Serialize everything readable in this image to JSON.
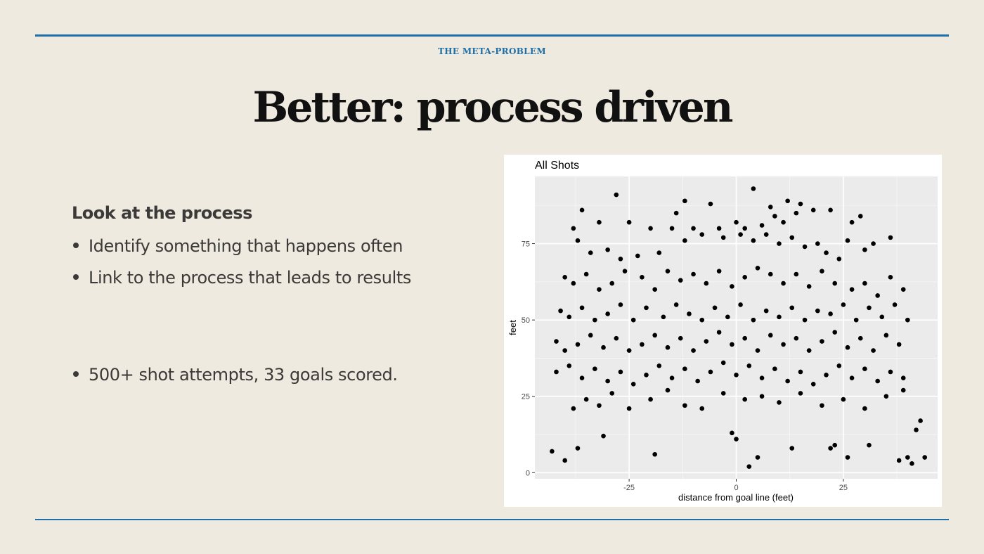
{
  "slide": {
    "eyebrow": "THE META-PROBLEM",
    "title": "Better: process driven",
    "lead": "Look at the process",
    "bullets": [
      "Identify something that happens often",
      "Link to the process that leads to results",
      "500+ shot attempts, 33 goals scored."
    ]
  },
  "colors": {
    "rule": "#1f6fa6",
    "background": "#efeadf",
    "panel": "#ebebeb",
    "point": "#000000"
  },
  "chart_data": {
    "type": "scatter",
    "title": "All Shots",
    "xlabel": "distance from goal line (feet)",
    "ylabel": "feet",
    "xlim": [
      -47,
      47
    ],
    "ylim": [
      -2,
      97
    ],
    "xticks": [
      -25,
      0,
      25
    ],
    "yticks": [
      0,
      25,
      50,
      75
    ],
    "xtick_labels": [
      "-25",
      "0",
      "25"
    ],
    "ytick_labels": [
      "0",
      "25",
      "50",
      "75"
    ],
    "grid": true,
    "points": [
      [
        -28,
        91
      ],
      [
        4,
        93
      ],
      [
        8,
        87
      ],
      [
        12,
        89
      ],
      [
        15,
        88
      ],
      [
        -12,
        89
      ],
      [
        -6,
        88
      ],
      [
        -36,
        86
      ],
      [
        -25,
        82
      ],
      [
        -32,
        82
      ],
      [
        -14,
        85
      ],
      [
        -20,
        80
      ],
      [
        -15,
        80
      ],
      [
        -10,
        80
      ],
      [
        -4,
        80
      ],
      [
        0,
        82
      ],
      [
        2,
        80
      ],
      [
        6,
        81
      ],
      [
        9,
        84
      ],
      [
        11,
        82
      ],
      [
        14,
        85
      ],
      [
        18,
        86
      ],
      [
        22,
        86
      ],
      [
        27,
        82
      ],
      [
        29,
        84
      ],
      [
        -38,
        80
      ],
      [
        -37,
        76
      ],
      [
        -34,
        72
      ],
      [
        -30,
        73
      ],
      [
        -27,
        70
      ],
      [
        -23,
        71
      ],
      [
        -18,
        72
      ],
      [
        -12,
        76
      ],
      [
        -8,
        78
      ],
      [
        -3,
        77
      ],
      [
        1,
        78
      ],
      [
        4,
        76
      ],
      [
        7,
        78
      ],
      [
        10,
        75
      ],
      [
        13,
        77
      ],
      [
        16,
        74
      ],
      [
        19,
        75
      ],
      [
        21,
        72
      ],
      [
        24,
        70
      ],
      [
        26,
        76
      ],
      [
        30,
        73
      ],
      [
        32,
        75
      ],
      [
        36,
        77
      ],
      [
        -40,
        64
      ],
      [
        -38,
        62
      ],
      [
        -35,
        65
      ],
      [
        -32,
        60
      ],
      [
        -29,
        62
      ],
      [
        -26,
        66
      ],
      [
        -22,
        64
      ],
      [
        -19,
        60
      ],
      [
        -16,
        66
      ],
      [
        -13,
        63
      ],
      [
        -10,
        65
      ],
      [
        -7,
        62
      ],
      [
        -4,
        66
      ],
      [
        -1,
        61
      ],
      [
        2,
        64
      ],
      [
        5,
        67
      ],
      [
        8,
        65
      ],
      [
        11,
        62
      ],
      [
        14,
        65
      ],
      [
        17,
        61
      ],
      [
        20,
        66
      ],
      [
        23,
        62
      ],
      [
        27,
        60
      ],
      [
        30,
        62
      ],
      [
        33,
        58
      ],
      [
        36,
        64
      ],
      [
        39,
        60
      ],
      [
        -41,
        53
      ],
      [
        -39,
        51
      ],
      [
        -36,
        54
      ],
      [
        -33,
        50
      ],
      [
        -30,
        52
      ],
      [
        -27,
        55
      ],
      [
        -24,
        50
      ],
      [
        -21,
        54
      ],
      [
        -17,
        51
      ],
      [
        -14,
        55
      ],
      [
        -11,
        52
      ],
      [
        -8,
        50
      ],
      [
        -5,
        54
      ],
      [
        -2,
        51
      ],
      [
        1,
        55
      ],
      [
        4,
        50
      ],
      [
        7,
        53
      ],
      [
        10,
        51
      ],
      [
        13,
        54
      ],
      [
        16,
        50
      ],
      [
        19,
        53
      ],
      [
        22,
        52
      ],
      [
        25,
        55
      ],
      [
        28,
        50
      ],
      [
        31,
        54
      ],
      [
        34,
        51
      ],
      [
        37,
        55
      ],
      [
        40,
        50
      ],
      [
        -42,
        43
      ],
      [
        -40,
        40
      ],
      [
        -37,
        42
      ],
      [
        -34,
        45
      ],
      [
        -31,
        41
      ],
      [
        -28,
        44
      ],
      [
        -25,
        40
      ],
      [
        -22,
        42
      ],
      [
        -19,
        45
      ],
      [
        -16,
        41
      ],
      [
        -13,
        44
      ],
      [
        -10,
        40
      ],
      [
        -7,
        43
      ],
      [
        -4,
        46
      ],
      [
        -1,
        42
      ],
      [
        2,
        44
      ],
      [
        5,
        40
      ],
      [
        8,
        45
      ],
      [
        11,
        42
      ],
      [
        14,
        44
      ],
      [
        17,
        40
      ],
      [
        20,
        43
      ],
      [
        23,
        46
      ],
      [
        26,
        41
      ],
      [
        29,
        44
      ],
      [
        32,
        40
      ],
      [
        35,
        45
      ],
      [
        38,
        42
      ],
      [
        -42,
        33
      ],
      [
        -39,
        35
      ],
      [
        -36,
        31
      ],
      [
        -33,
        34
      ],
      [
        -30,
        30
      ],
      [
        -27,
        33
      ],
      [
        -24,
        29
      ],
      [
        -21,
        32
      ],
      [
        -18,
        35
      ],
      [
        -15,
        31
      ],
      [
        -12,
        34
      ],
      [
        -9,
        30
      ],
      [
        -6,
        33
      ],
      [
        -3,
        36
      ],
      [
        0,
        32
      ],
      [
        3,
        35
      ],
      [
        6,
        31
      ],
      [
        9,
        34
      ],
      [
        12,
        30
      ],
      [
        15,
        33
      ],
      [
        18,
        29
      ],
      [
        21,
        32
      ],
      [
        24,
        35
      ],
      [
        27,
        31
      ],
      [
        30,
        34
      ],
      [
        33,
        30
      ],
      [
        36,
        33
      ],
      [
        39,
        31
      ],
      [
        -38,
        21
      ],
      [
        -35,
        24
      ],
      [
        -32,
        22
      ],
      [
        -29,
        26
      ],
      [
        -25,
        21
      ],
      [
        -20,
        24
      ],
      [
        -16,
        27
      ],
      [
        -12,
        22
      ],
      [
        -8,
        21
      ],
      [
        -3,
        26
      ],
      [
        2,
        24
      ],
      [
        6,
        25
      ],
      [
        10,
        23
      ],
      [
        15,
        26
      ],
      [
        20,
        22
      ],
      [
        25,
        24
      ],
      [
        30,
        21
      ],
      [
        35,
        25
      ],
      [
        39,
        27
      ],
      [
        -43,
        7
      ],
      [
        -37,
        8
      ],
      [
        -31,
        12
      ],
      [
        -19,
        6
      ],
      [
        -40,
        4
      ],
      [
        -1,
        13
      ],
      [
        0,
        11
      ],
      [
        3,
        2
      ],
      [
        5,
        5
      ],
      [
        13,
        8
      ],
      [
        22,
        8
      ],
      [
        23,
        9
      ],
      [
        26,
        5
      ],
      [
        31,
        9
      ],
      [
        38,
        4
      ],
      [
        40,
        5
      ],
      [
        41,
        3
      ],
      [
        42,
        14
      ],
      [
        43,
        17
      ],
      [
        44,
        5
      ]
    ]
  }
}
